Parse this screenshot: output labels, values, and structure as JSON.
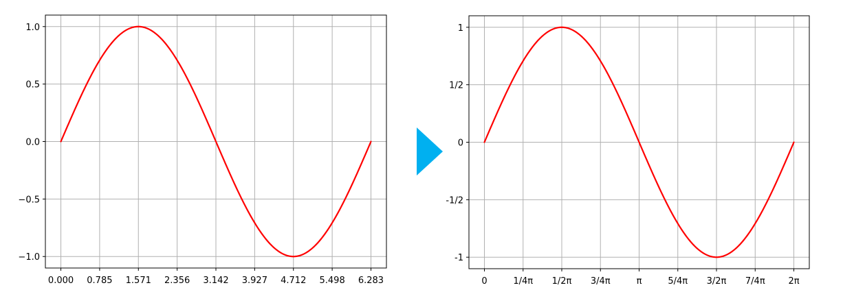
{
  "chart_data": [
    {
      "type": "line",
      "title": "",
      "xlabel": "",
      "ylabel": "",
      "xlim": [
        -0.314,
        6.597
      ],
      "ylim": [
        -1.1,
        1.1
      ],
      "grid": true,
      "x_ticks": [
        {
          "value": 0,
          "label": "0.000"
        },
        {
          "value": 0.785398,
          "label": "0.785"
        },
        {
          "value": 1.570796,
          "label": "1.571"
        },
        {
          "value": 2.356194,
          "label": "2.356"
        },
        {
          "value": 3.141593,
          "label": "3.142"
        },
        {
          "value": 3.926991,
          "label": "3.927"
        },
        {
          "value": 4.712389,
          "label": "4.712"
        },
        {
          "value": 5.497787,
          "label": "5.498"
        },
        {
          "value": 6.283185,
          "label": "6.283"
        }
      ],
      "y_ticks": [
        {
          "value": 1.0,
          "label": "1.0"
        },
        {
          "value": 0.5,
          "label": "0.5"
        },
        {
          "value": 0.0,
          "label": "0.0"
        },
        {
          "value": -0.5,
          "label": "−0.5"
        },
        {
          "value": -1.0,
          "label": "−1.0"
        }
      ],
      "series": [
        {
          "color": "#ff0000",
          "x": [
            0,
            0.392699,
            0.785398,
            1.178097,
            1.570796,
            1.963495,
            2.356194,
            2.748894,
            3.141593,
            3.534292,
            3.926991,
            4.31969,
            4.712389,
            5.105088,
            5.497787,
            5.890486,
            6.283185
          ],
          "y": [
            0,
            0.3827,
            0.7071,
            0.9239,
            1.0,
            0.9239,
            0.7071,
            0.3827,
            0,
            -0.3827,
            -0.7071,
            -0.9239,
            -1.0,
            -0.9239,
            -0.7071,
            -0.3827,
            0
          ]
        }
      ]
    },
    {
      "type": "line",
      "title": "",
      "xlabel": "",
      "ylabel": "",
      "xlim": [
        -0.314,
        6.597
      ],
      "ylim": [
        -1.1,
        1.1
      ],
      "grid": true,
      "x_ticks": [
        {
          "value": 0,
          "label": "0"
        },
        {
          "value": 0.785398,
          "label": "1/4π"
        },
        {
          "value": 1.570796,
          "label": "1/2π"
        },
        {
          "value": 2.356194,
          "label": "3/4π"
        },
        {
          "value": 3.141593,
          "label": "π"
        },
        {
          "value": 3.926991,
          "label": "5/4π"
        },
        {
          "value": 4.712389,
          "label": "3/2π"
        },
        {
          "value": 5.497787,
          "label": "7/4π"
        },
        {
          "value": 6.283185,
          "label": "2π"
        }
      ],
      "y_ticks": [
        {
          "value": 1.0,
          "label": "1"
        },
        {
          "value": 0.5,
          "label": "1/2"
        },
        {
          "value": 0.0,
          "label": "0"
        },
        {
          "value": -0.5,
          "label": "-1/2"
        },
        {
          "value": -1.0,
          "label": "-1"
        }
      ],
      "series": [
        {
          "color": "#ff0000",
          "x": [
            0,
            0.392699,
            0.785398,
            1.178097,
            1.570796,
            1.963495,
            2.356194,
            2.748894,
            3.141593,
            3.534292,
            3.926991,
            4.31969,
            4.712389,
            5.105088,
            5.497787,
            5.890486,
            6.283185
          ],
          "y": [
            0,
            0.3827,
            0.7071,
            0.9239,
            1.0,
            0.9239,
            0.7071,
            0.3827,
            0,
            -0.3827,
            -0.7071,
            -0.9239,
            -1.0,
            -0.9239,
            -0.7071,
            -0.3827,
            0
          ]
        }
      ]
    }
  ],
  "arrow": {
    "color": "#00b0f0",
    "icon": "right-triangle-arrow-icon"
  }
}
